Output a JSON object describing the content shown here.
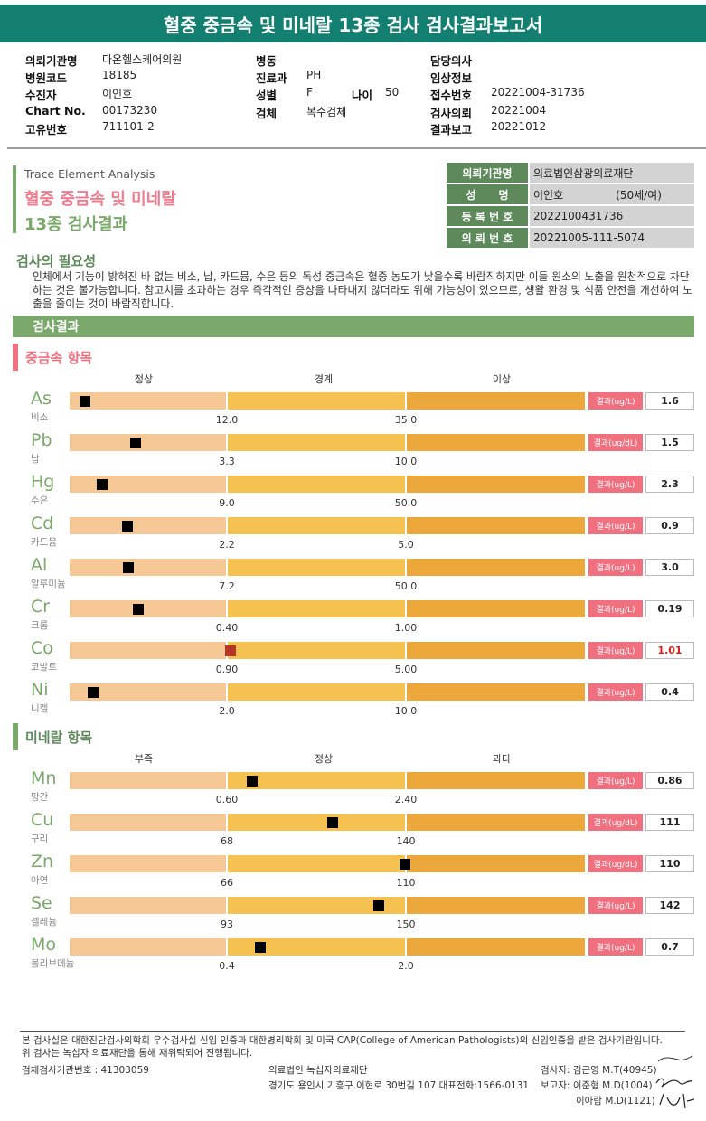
{
  "title": "혈중 중금속 및 미네랄 13종 검사 검사결과보고서",
  "info": {
    "col1": [
      {
        "label": "의뢰기관명",
        "value": "다온헬스케어의원"
      },
      {
        "label": "병원코드",
        "value": "18185"
      },
      {
        "label": "수진자",
        "value": "이인호"
      },
      {
        "label": "Chart No.",
        "value": "00173230"
      },
      {
        "label": "고유번호",
        "value": "711101-2"
      }
    ],
    "col2": [
      {
        "label": "병동",
        "value": ""
      },
      {
        "label": "진료과",
        "value": "PH"
      },
      {
        "label": "성별",
        "value": "F"
      },
      {
        "label": "검체",
        "value": "복수검체"
      }
    ],
    "age": {
      "label": "나이",
      "value": "50"
    },
    "col3": [
      {
        "label": "담당의사",
        "value": ""
      },
      {
        "label": "임상정보",
        "value": ""
      },
      {
        "label": "접수번호",
        "value": "20221004-31736"
      },
      {
        "label": "검사의뢰",
        "value": "20221004"
      },
      {
        "label": "결과보고",
        "value": "20221012"
      }
    ]
  },
  "analysis": {
    "subtitle": "Trace Element Analysis",
    "title_line1": "혈중 중금속 및 미네랄",
    "title_line2": "13종 검사결과"
  },
  "patient_table": [
    {
      "label": "의뢰기관명",
      "value": "의료법인삼광의료재단"
    },
    {
      "label": "성      명",
      "value": "이인호",
      "extra": "(50세/여)"
    },
    {
      "label": "등 록 번 호",
      "value": "2022100431736"
    },
    {
      "label": "의 뢰 번 호",
      "value": "20221005-111-5074"
    }
  ],
  "necessity": {
    "title": "검사의 필요성",
    "text": "인체에서 기능이 밝혀진 바 없는 비소, 납, 카드뮴, 수은 등의 독성 중금속은 혈중 농도가 낮을수록 바람직하지만 이들 원소의 노출을 원천적으로 차단하는 것은 불가능합니다. 참고치를 초과하는 경우 즉각적인 증상을 나타내지 않더라도 위해 가능성이 있으므로, 생활 환경 및 식품 안전을 개선하여 노출을 줄이는 것이 바람직합니다."
  },
  "result_header": "검사결과",
  "heavy": {
    "title": "중금속 항목",
    "categories": [
      "정상",
      "경계",
      "이상"
    ],
    "items": [
      {
        "symbol": "As",
        "name": "비소",
        "cut1": "12.0",
        "cut2": "35.0",
        "unit": "결과(ug/L)",
        "value": "1.6",
        "level": 0.03,
        "high": false
      },
      {
        "symbol": "Pb",
        "name": "납",
        "cut1": "3.3",
        "cut2": "10.0",
        "unit": "결과(ug/dL)",
        "value": "1.5",
        "level": 0.128,
        "high": false
      },
      {
        "symbol": "Hg",
        "name": "수은",
        "cut1": "9.0",
        "cut2": "50.0",
        "unit": "결과(ug/L)",
        "value": "2.3",
        "level": 0.063,
        "high": false
      },
      {
        "symbol": "Cd",
        "name": "카드뮴",
        "cut1": "2.2",
        "cut2": "5.0",
        "unit": "결과(ug/L)",
        "value": "0.9",
        "level": 0.112,
        "high": false
      },
      {
        "symbol": "Al",
        "name": "알루미늄",
        "cut1": "7.2",
        "cut2": "50.0",
        "unit": "결과(ug/L)",
        "value": "3.0",
        "level": 0.114,
        "high": false
      },
      {
        "symbol": "Cr",
        "name": "크롬",
        "cut1": "0.40",
        "cut2": "1.00",
        "unit": "결과(ug/L)",
        "value": "0.19",
        "level": 0.133,
        "high": false
      },
      {
        "symbol": "Co",
        "name": "코발트",
        "cut1": "0.90",
        "cut2": "5.00",
        "unit": "결과(ug/L)",
        "value": "1.01",
        "level": 0.312,
        "high": true
      },
      {
        "symbol": "Ni",
        "name": "니켈",
        "cut1": "2.0",
        "cut2": "10.0",
        "unit": "결과(ug/L)",
        "value": "0.4",
        "level": 0.045,
        "high": false
      }
    ]
  },
  "mineral": {
    "title": "미네랄 항목",
    "categories": [
      "부족",
      "정상",
      "과다"
    ],
    "items": [
      {
        "symbol": "Mn",
        "name": "망간",
        "cut1": "0.60",
        "cut2": "2.40",
        "unit": "결과(ug/L)",
        "value": "0.86",
        "level": 0.354,
        "high": false
      },
      {
        "symbol": "Cu",
        "name": "구리",
        "cut1": "68",
        "cut2": "140",
        "unit": "결과(ug/dL)",
        "value": "111",
        "level": 0.51,
        "high": false
      },
      {
        "symbol": "Zn",
        "name": "아연",
        "cut1": "66",
        "cut2": "110",
        "unit": "결과(ug/dL)",
        "value": "110",
        "level": 0.65,
        "high": false
      },
      {
        "symbol": "Se",
        "name": "셀레늄",
        "cut1": "93",
        "cut2": "150",
        "unit": "결과(ug/L)",
        "value": "142",
        "level": 0.6,
        "high": false
      },
      {
        "symbol": "Mo",
        "name": "몰리브데늄",
        "cut1": "0.4",
        "cut2": "2.0",
        "unit": "결과(ug/L)",
        "value": "0.7",
        "level": 0.37,
        "high": false
      }
    ]
  },
  "footer": {
    "line1": "본 검사실은 대한진단검사의학회 우수검사실 신임 인증과 대한병리학회 및 미국 CAP(College of American Pathologists)의 신임인증을 받은 검사기관입니다.",
    "line2": "위 검사는 녹십자 의료재단을 통해 재위탁되어 진행됩니다.",
    "agency_no": "검체검사기관번호 : 41303059",
    "org_name": "의료법인 녹십자의료재단",
    "org_addr": "경기도 용인시 기흥구 이현로 30번길 107 대표전화:1566-0131",
    "tester": "검사자: 김근영 M.T(40945)",
    "reporter1": "보고자: 이준형 M.D(1004)",
    "reporter2": "이아람 M.D(1121)"
  },
  "colors": {
    "header": "#127f70",
    "green": "#7aa86a",
    "pink": "#f07b8e",
    "seg_low": "#f6c895",
    "seg_mid": "#f5c151",
    "seg_high": "#eda83c",
    "high_value": "#e01b1b"
  }
}
